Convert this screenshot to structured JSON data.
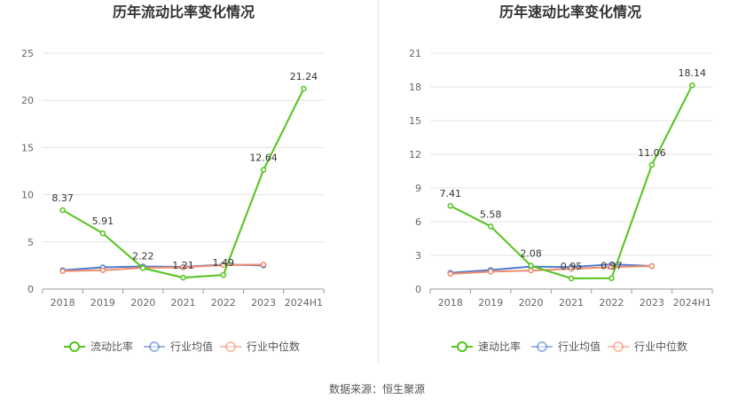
{
  "footer": {
    "source_text": "数据来源：恒生聚源"
  },
  "chart_data": [
    {
      "type": "line",
      "title": "历年流动比率变化情况",
      "categories": [
        "2018",
        "2019",
        "2020",
        "2021",
        "2022",
        "2023",
        "2024H1"
      ],
      "ylim": [
        0,
        25
      ],
      "yticks": [
        0,
        5,
        10,
        15,
        20,
        25
      ],
      "grid": true,
      "legend_position": "bottom",
      "series": [
        {
          "name": "流动比率",
          "color": "#52c41a",
          "values": [
            8.37,
            5.91,
            2.22,
            1.21,
            1.49,
            12.64,
            21.24
          ],
          "labels": [
            "8.37",
            "5.91",
            "2.22",
            "1.21",
            "1.49",
            "12.64",
            "21.24"
          ]
        },
        {
          "name": "行业均值",
          "color": "#4e7ccc",
          "values": [
            2.0,
            2.3,
            2.4,
            2.35,
            2.6,
            2.5,
            null
          ]
        },
        {
          "name": "行业中位数",
          "color": "#f08c6c",
          "values": [
            1.9,
            2.0,
            2.25,
            2.3,
            2.55,
            2.6,
            null
          ]
        }
      ]
    },
    {
      "type": "line",
      "title": "历年速动比率变化情况",
      "categories": [
        "2018",
        "2019",
        "2020",
        "2021",
        "2022",
        "2023",
        "2024H1"
      ],
      "ylim": [
        0,
        21
      ],
      "yticks": [
        0,
        3,
        6,
        9,
        12,
        15,
        18,
        21
      ],
      "grid": true,
      "legend_position": "bottom",
      "series": [
        {
          "name": "速动比率",
          "color": "#52c41a",
          "values": [
            7.41,
            5.58,
            2.08,
            0.95,
            0.97,
            11.06,
            18.14
          ],
          "labels": [
            "7.41",
            "5.58",
            "2.08",
            "0.95",
            "0.97",
            "11.06",
            "18.14"
          ]
        },
        {
          "name": "行业均值",
          "color": "#4e7ccc",
          "values": [
            1.45,
            1.7,
            2.0,
            1.95,
            2.2,
            2.05,
            null
          ]
        },
        {
          "name": "行业中位数",
          "color": "#f08c6c",
          "values": [
            1.35,
            1.55,
            1.65,
            1.8,
            1.95,
            2.05,
            null
          ]
        }
      ]
    }
  ]
}
